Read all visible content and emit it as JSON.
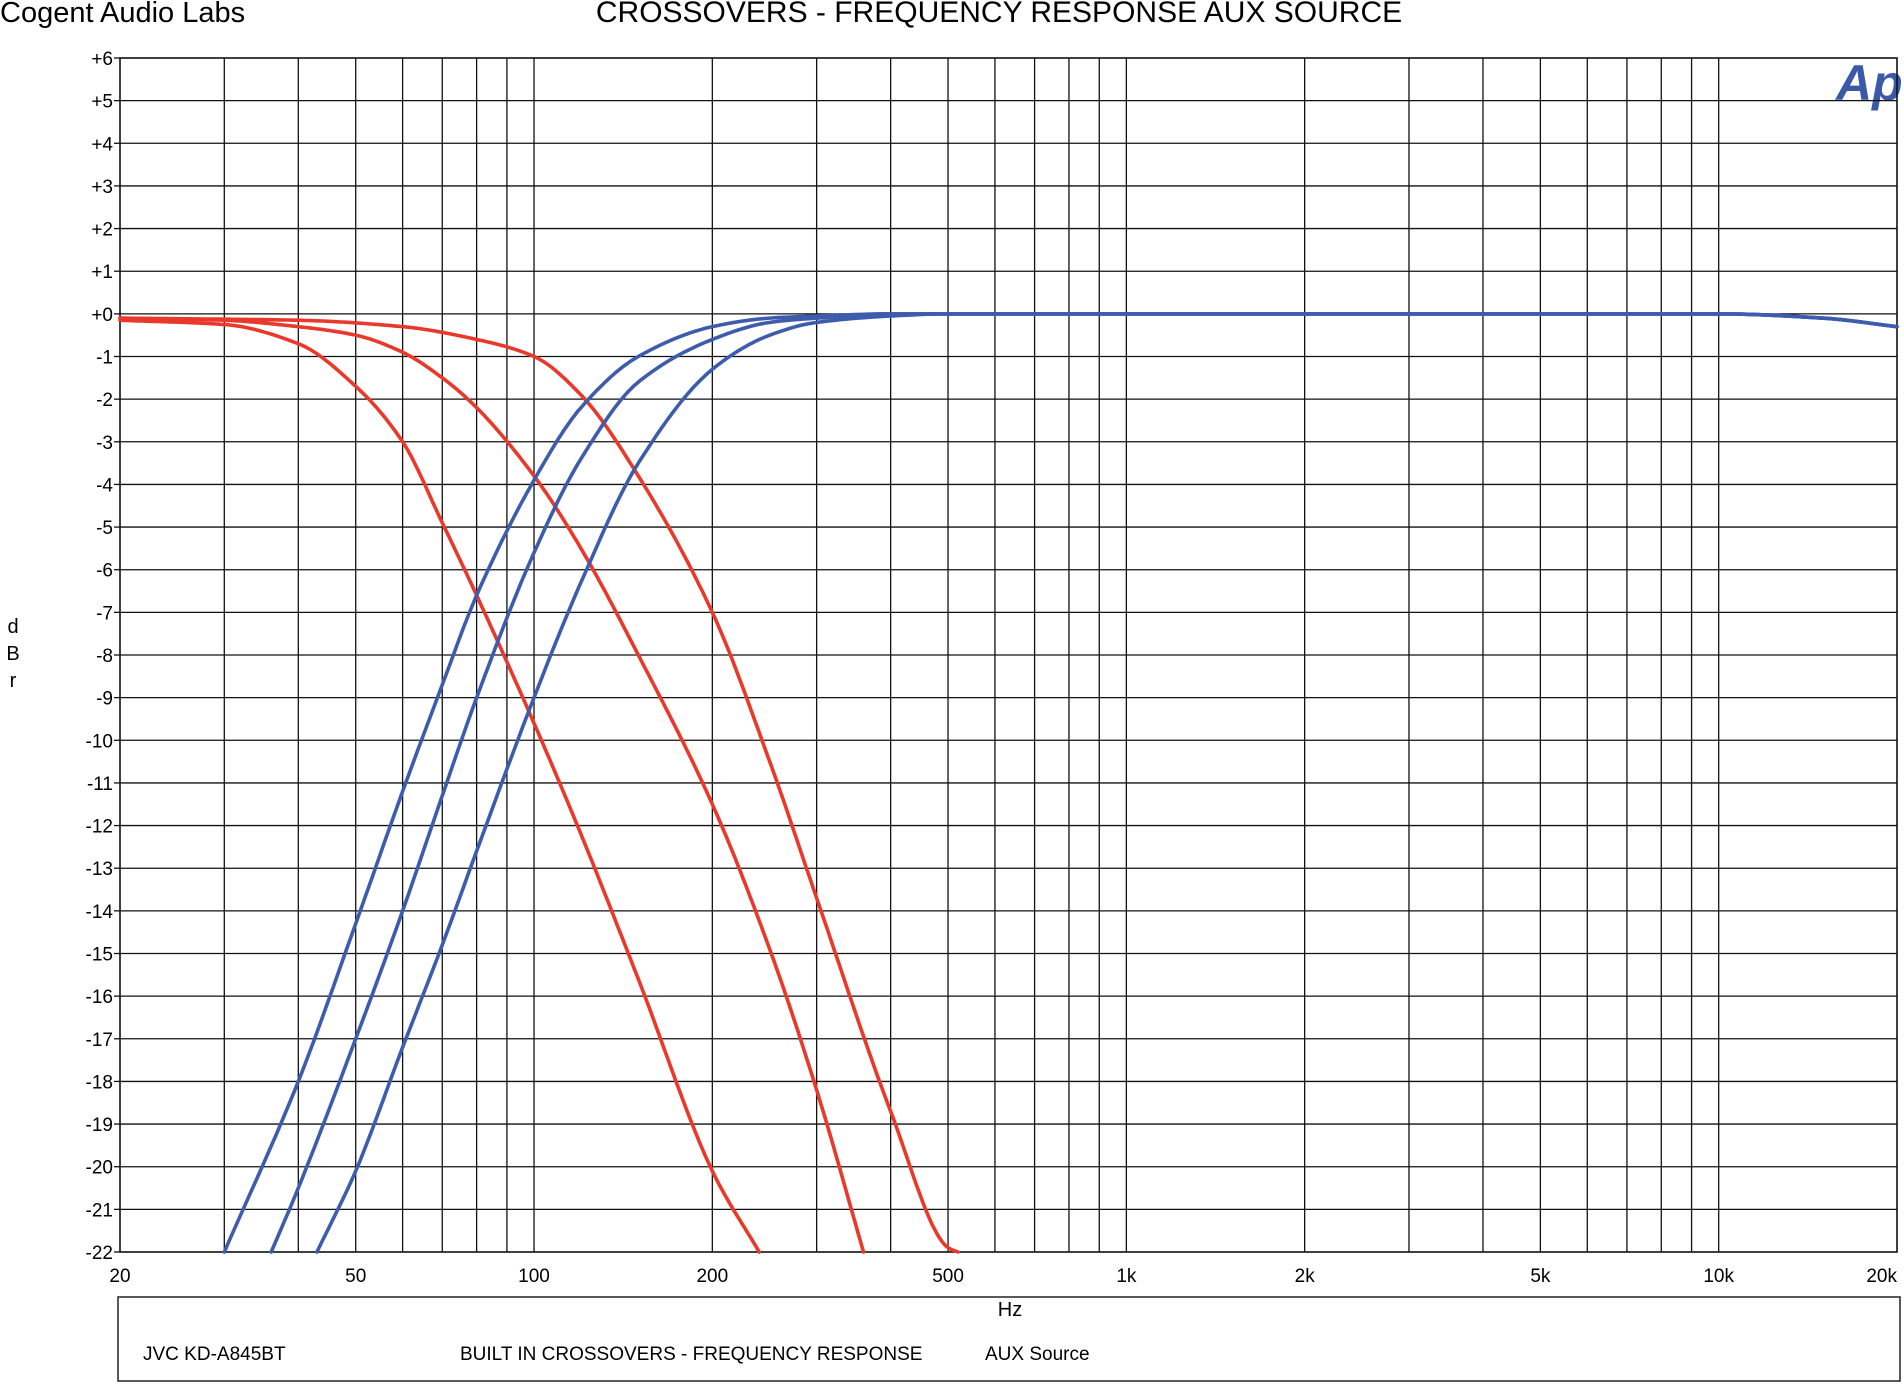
{
  "header": {
    "company": "Cogent Audio Labs",
    "title": "CROSSOVERS  -  FREQUENCY RESPONSE    AUX SOURCE"
  },
  "logo": {
    "text": "Ap",
    "color": "#3a5aa8"
  },
  "footer": {
    "model": "JVC  KD-A845BT",
    "description": "BUILT IN CROSSOVERS  -  FREQUENCY RESPONSE",
    "source": "AUX Source"
  },
  "chart_data": {
    "type": "line",
    "xlabel": "Hz",
    "ylabel": "dBr",
    "x_scale": "log",
    "xlim": [
      20,
      20000
    ],
    "ylim": [
      -22,
      6
    ],
    "grid": true,
    "x_ticks": [
      20,
      50,
      100,
      200,
      500,
      1000,
      2000,
      5000,
      10000,
      20000
    ],
    "x_tick_labels": [
      "20",
      "50",
      "100",
      "200",
      "500",
      "1k",
      "2k",
      "5k",
      "10k",
      "20k"
    ],
    "y_ticks": [
      6,
      5,
      4,
      3,
      2,
      1,
      0,
      -1,
      -2,
      -3,
      -4,
      -5,
      -6,
      -7,
      -8,
      -9,
      -10,
      -11,
      -12,
      -13,
      -14,
      -15,
      -16,
      -17,
      -18,
      -19,
      -20,
      -21,
      -22
    ],
    "y_tick_labels": [
      "+6",
      "+5",
      "+4",
      "+3",
      "+2",
      "+1",
      "+0",
      "-1",
      "-2",
      "-3",
      "-4",
      "-5",
      "-6",
      "-7",
      "-8",
      "-9",
      "-10",
      "-11",
      "-12",
      "-13",
      "-14",
      "-15",
      "-16",
      "-17",
      "-18",
      "-19",
      "-20",
      "-21",
      "-22"
    ],
    "colors": {
      "lowpass": "#e8392b",
      "highpass": "#3e5cad"
    },
    "series": [
      {
        "kind": "lowpass",
        "x": [
          20,
          30,
          40,
          50,
          60,
          70,
          80,
          100,
          120,
          150,
          200,
          240
        ],
        "y": [
          -0.15,
          -0.25,
          -0.7,
          -1.7,
          -3.0,
          -4.9,
          -6.6,
          -9.6,
          -12.2,
          -15.6,
          -20.1,
          -22.0
        ]
      },
      {
        "kind": "lowpass",
        "x": [
          20,
          30,
          40,
          50,
          60,
          70,
          80,
          100,
          120,
          150,
          200,
          250,
          300,
          360
        ],
        "y": [
          -0.1,
          -0.15,
          -0.3,
          -0.5,
          -0.9,
          -1.5,
          -2.2,
          -3.8,
          -5.5,
          -8.0,
          -11.5,
          -14.9,
          -18.2,
          -22.0
        ]
      },
      {
        "kind": "lowpass",
        "x": [
          20,
          40,
          60,
          80,
          100,
          120,
          150,
          200,
          250,
          300,
          400,
          500,
          520
        ],
        "y": [
          -0.1,
          -0.15,
          -0.3,
          -0.6,
          -1.0,
          -1.9,
          -3.8,
          -7.0,
          -10.5,
          -13.7,
          -18.7,
          -21.9,
          -22.0
        ]
      },
      {
        "kind": "highpass",
        "x": [
          30,
          40,
          50,
          60,
          70,
          80,
          100,
          120,
          150,
          200,
          250,
          300,
          400,
          500,
          1000,
          5000,
          10000,
          15000,
          20000
        ],
        "y": [
          -22.0,
          -18.0,
          -14.3,
          -11.2,
          -8.7,
          -6.6,
          -3.9,
          -2.2,
          -1.0,
          -0.3,
          -0.1,
          -0.05,
          0,
          0,
          0,
          0,
          0,
          -0.1,
          -0.3
        ]
      },
      {
        "kind": "highpass",
        "x": [
          36,
          40,
          50,
          60,
          70,
          80,
          100,
          120,
          150,
          200,
          250,
          300,
          400,
          500,
          1000,
          5000,
          10000,
          15000,
          20000
        ],
        "y": [
          -22.0,
          -20.5,
          -17.0,
          -14.0,
          -11.3,
          -9.0,
          -5.6,
          -3.4,
          -1.6,
          -0.6,
          -0.2,
          -0.1,
          0,
          0,
          0,
          0,
          0,
          -0.1,
          -0.3
        ]
      },
      {
        "kind": "highpass",
        "x": [
          43,
          50,
          60,
          70,
          80,
          100,
          120,
          150,
          200,
          250,
          300,
          400,
          500,
          1000,
          5000,
          10000,
          15000,
          20000
        ],
        "y": [
          -22.0,
          -20.1,
          -17.2,
          -14.8,
          -12.6,
          -9.0,
          -6.3,
          -3.5,
          -1.3,
          -0.5,
          -0.2,
          -0.05,
          0,
          0,
          0,
          0,
          -0.1,
          -0.3
        ]
      }
    ]
  }
}
